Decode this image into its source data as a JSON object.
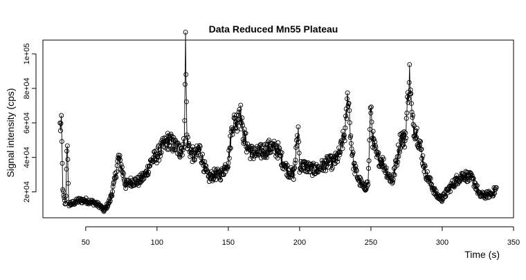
{
  "chart_data": {
    "type": "scatter",
    "title": "Data Reduced Mn55 Plateau",
    "xlabel": "Time (s)",
    "ylabel": "Signal intensity (cps)",
    "xlim": [
      20,
      350
    ],
    "ylim": [
      5000,
      108000
    ],
    "x_ticks": [
      50,
      100,
      150,
      200,
      250,
      300,
      350
    ],
    "y_ticks": [
      20000,
      40000,
      60000,
      80000,
      100000
    ],
    "y_tick_labels": [
      "2e+04",
      "4e+04",
      "6e+04",
      "8e+04",
      "1e+05"
    ],
    "grid": false,
    "legend": "none",
    "marker": "open-circle",
    "connect_points": true,
    "anchors": [
      [
        33,
        58000
      ],
      [
        34,
        20000
      ],
      [
        35,
        15000
      ],
      [
        36,
        12000
      ],
      [
        37,
        55000
      ],
      [
        38,
        13000
      ],
      [
        40,
        13000
      ],
      [
        45,
        15000
      ],
      [
        50,
        15000
      ],
      [
        55,
        14000
      ],
      [
        60,
        12000
      ],
      [
        63,
        9000
      ],
      [
        67,
        15000
      ],
      [
        70,
        25000
      ],
      [
        73,
        40000
      ],
      [
        75,
        35000
      ],
      [
        78,
        24000
      ],
      [
        82,
        26000
      ],
      [
        87,
        26000
      ],
      [
        92,
        30000
      ],
      [
        96,
        38000
      ],
      [
        100,
        41000
      ],
      [
        104,
        46000
      ],
      [
        108,
        50000
      ],
      [
        112,
        47000
      ],
      [
        116,
        44000
      ],
      [
        119,
        47000
      ],
      [
        120,
        106000
      ],
      [
        121,
        50000
      ],
      [
        124,
        42000
      ],
      [
        127,
        41000
      ],
      [
        130,
        45000
      ],
      [
        133,
        35000
      ],
      [
        136,
        28000
      ],
      [
        140,
        30000
      ],
      [
        145,
        30000
      ],
      [
        150,
        38000
      ],
      [
        153,
        60000
      ],
      [
        156,
        61000
      ],
      [
        158,
        70000
      ],
      [
        160,
        55000
      ],
      [
        163,
        47000
      ],
      [
        166,
        43000
      ],
      [
        170,
        42000
      ],
      [
        175,
        44000
      ],
      [
        180,
        46000
      ],
      [
        185,
        44000
      ],
      [
        188,
        38000
      ],
      [
        192,
        32000
      ],
      [
        196,
        30000
      ],
      [
        199,
        57000
      ],
      [
        200,
        35000
      ],
      [
        204,
        35000
      ],
      [
        208,
        33000
      ],
      [
        212,
        33000
      ],
      [
        216,
        35000
      ],
      [
        220,
        37000
      ],
      [
        224,
        37000
      ],
      [
        228,
        42000
      ],
      [
        232,
        55000
      ],
      [
        234,
        78000
      ],
      [
        236,
        50000
      ],
      [
        238,
        35000
      ],
      [
        241,
        28000
      ],
      [
        245,
        22000
      ],
      [
        248,
        25000
      ],
      [
        250,
        72000
      ],
      [
        251,
        52000
      ],
      [
        254,
        40000
      ],
      [
        258,
        38000
      ],
      [
        262,
        30000
      ],
      [
        265,
        26000
      ],
      [
        268,
        38000
      ],
      [
        271,
        52000
      ],
      [
        274,
        50000
      ],
      [
        277,
        89000
      ],
      [
        279,
        60000
      ],
      [
        282,
        55000
      ],
      [
        285,
        45000
      ],
      [
        288,
        32000
      ],
      [
        292,
        25000
      ],
      [
        296,
        18000
      ],
      [
        300,
        16000
      ],
      [
        305,
        22000
      ],
      [
        310,
        27000
      ],
      [
        315,
        30000
      ],
      [
        320,
        28000
      ],
      [
        323,
        25000
      ],
      [
        326,
        18000
      ],
      [
        330,
        18000
      ],
      [
        335,
        19000
      ],
      [
        338,
        22000
      ]
    ]
  }
}
